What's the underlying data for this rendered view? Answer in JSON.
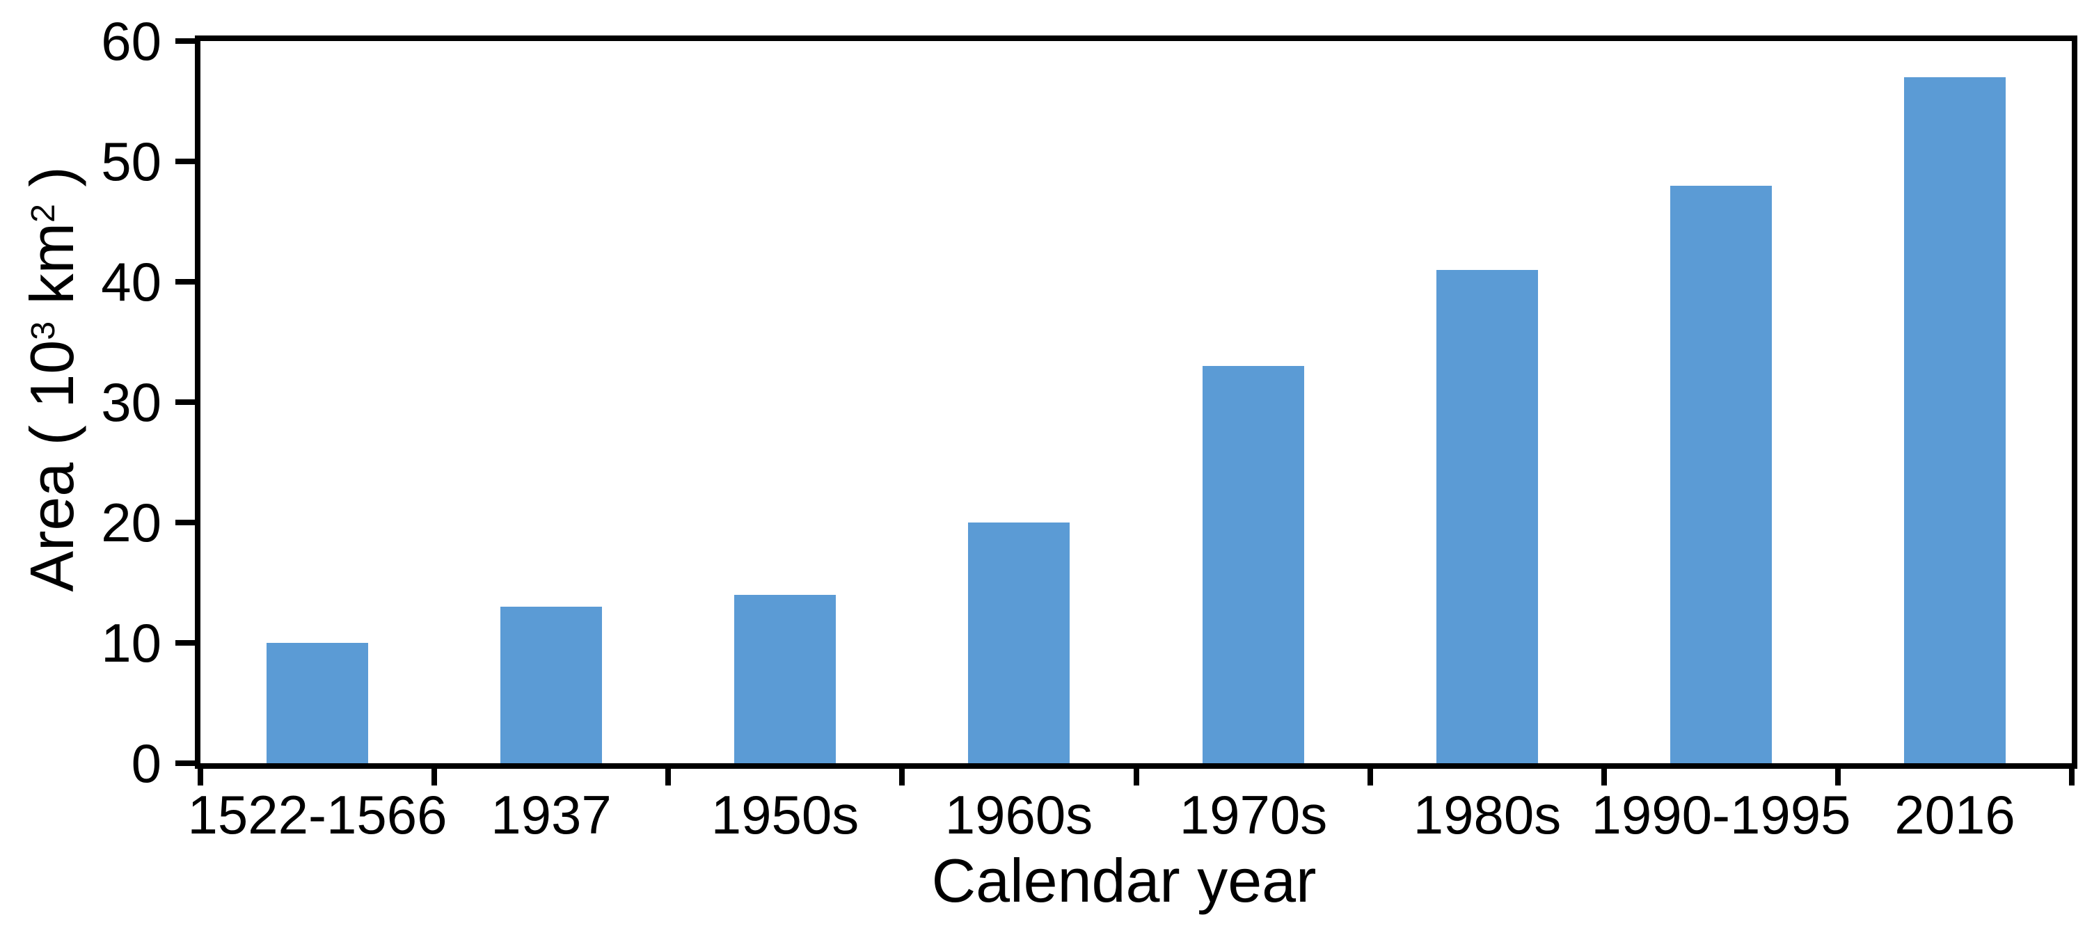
{
  "chart_data": {
    "type": "bar",
    "title": "",
    "categories": [
      "1522-1566",
      "1937",
      "1950s",
      "1960s",
      "1970s",
      "1980s",
      "1990-1995",
      "2016"
    ],
    "values": [
      10,
      13,
      14,
      20,
      33,
      41,
      48,
      57
    ],
    "xlabel": "Calendar year",
    "ylabel": "Area ( 10³ km² )",
    "ylabel_parts": {
      "prefix": "Area ( 10",
      "sup1": "3",
      "mid": " km",
      "sup2": "2",
      "suffix": " )"
    },
    "ylim": [
      0,
      60
    ],
    "yticks": [
      0,
      10,
      20,
      30,
      40,
      50,
      60
    ],
    "grid": false,
    "legend": "none",
    "bar_color": "#5B9BD5",
    "axis_color": "#000000",
    "background_color": "#FFFFFF"
  }
}
